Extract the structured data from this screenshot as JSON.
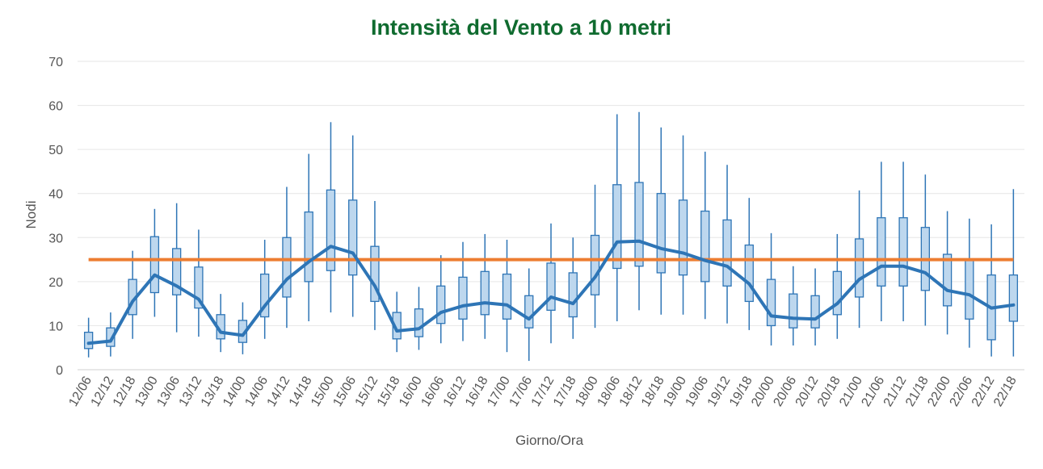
{
  "chart_data": {
    "type": "boxplot",
    "title": "Intensità del Vento a 10 metri",
    "xlabel": "Giorno/Ora",
    "ylabel": "Nodi",
    "ylim": [
      0,
      70
    ],
    "yticks": [
      0,
      10,
      20,
      30,
      40,
      50,
      60,
      70
    ],
    "grid": true,
    "colors": {
      "title": "#0f6b2f",
      "box_fill": "#bdd7ee",
      "box_stroke": "#2e75b6",
      "mean_line": "#2e75b6",
      "threshold_line": "#ed7d31",
      "grid": "#e6e6e6"
    },
    "threshold": 25,
    "categories": [
      "12/06",
      "12/12",
      "12/18",
      "13/00",
      "13/06",
      "13/12",
      "13/18",
      "14/00",
      "14/06",
      "14/12",
      "14/18",
      "15/00",
      "15/06",
      "15/12",
      "15/18",
      "16/00",
      "16/06",
      "16/12",
      "16/18",
      "17/00",
      "17/06",
      "17/12",
      "17/18",
      "18/00",
      "18/06",
      "18/12",
      "18/18",
      "19/00",
      "19/06",
      "19/12",
      "19/18",
      "20/00",
      "20/06",
      "20/12",
      "20/18",
      "21/00",
      "21/06",
      "21/12",
      "21/18",
      "22/00",
      "22/06",
      "22/12",
      "22/18"
    ],
    "series": [
      {
        "kind": "whisker_low",
        "values": [
          2.8,
          3.0,
          7.0,
          12.0,
          8.5,
          7.5,
          4.0,
          3.5,
          7.0,
          9.5,
          11.0,
          13.0,
          12.0,
          9.0,
          4.0,
          4.5,
          6.0,
          6.5,
          7.0,
          4.0,
          2.0,
          6.0,
          7.0,
          9.5,
          11.0,
          13.5,
          12.5,
          12.5,
          11.5,
          10.5,
          9.0,
          5.5,
          5.5,
          5.5,
          7.0,
          9.5,
          11.0,
          11.0,
          10.0,
          8.0,
          5.0,
          3.0,
          3.0
        ]
      },
      {
        "kind": "box_low",
        "values": [
          4.8,
          5.3,
          12.5,
          17.5,
          17.0,
          14.0,
          7.0,
          6.2,
          12.0,
          16.5,
          20.0,
          22.5,
          21.5,
          15.5,
          7.0,
          7.5,
          10.5,
          11.5,
          12.5,
          11.5,
          9.5,
          13.5,
          12.0,
          17.0,
          23.0,
          23.5,
          22.0,
          21.5,
          20.0,
          19.0,
          15.5,
          10.0,
          9.5,
          9.5,
          12.5,
          16.5,
          19.0,
          19.0,
          18.0,
          14.5,
          11.5,
          6.8,
          11.0
        ]
      },
      {
        "kind": "mean",
        "values": [
          6.0,
          6.5,
          15.5,
          21.5,
          19.0,
          16.0,
          8.5,
          7.8,
          14.5,
          20.5,
          24.5,
          28.0,
          26.5,
          19.0,
          8.8,
          9.3,
          13.0,
          14.5,
          15.2,
          14.7,
          11.5,
          16.5,
          15.0,
          21.0,
          29.0,
          29.2,
          27.5,
          26.5,
          24.8,
          23.5,
          19.5,
          12.2,
          11.7,
          11.5,
          15.0,
          20.5,
          23.5,
          23.5,
          22.0,
          18.0,
          17.0,
          14.0,
          14.7
        ]
      },
      {
        "kind": "box_high",
        "values": [
          8.5,
          9.5,
          20.5,
          30.2,
          27.5,
          23.3,
          12.5,
          11.2,
          21.7,
          30.0,
          35.8,
          40.8,
          38.5,
          28.0,
          13.0,
          13.8,
          19.0,
          21.0,
          22.3,
          21.7,
          16.8,
          24.2,
          22.0,
          30.5,
          42.0,
          42.5,
          40.0,
          38.5,
          36.0,
          34.0,
          28.3,
          20.5,
          17.2,
          16.8,
          22.3,
          29.7,
          34.5,
          34.5,
          32.3,
          26.2,
          25.0,
          21.5,
          21.5
        ]
      },
      {
        "kind": "whisker_high",
        "values": [
          11.8,
          13.0,
          27.0,
          36.5,
          37.8,
          31.8,
          17.2,
          15.3,
          29.5,
          41.5,
          49.0,
          56.2,
          53.2,
          38.3,
          17.7,
          18.8,
          26.0,
          29.0,
          30.8,
          29.5,
          23.0,
          33.2,
          30.0,
          42.0,
          58.0,
          58.5,
          55.0,
          53.2,
          49.5,
          46.5,
          39.0,
          31.0,
          23.5,
          23.0,
          30.8,
          40.7,
          47.2,
          47.2,
          44.3,
          36.0,
          34.3,
          33.0,
          41.0
        ]
      }
    ]
  }
}
